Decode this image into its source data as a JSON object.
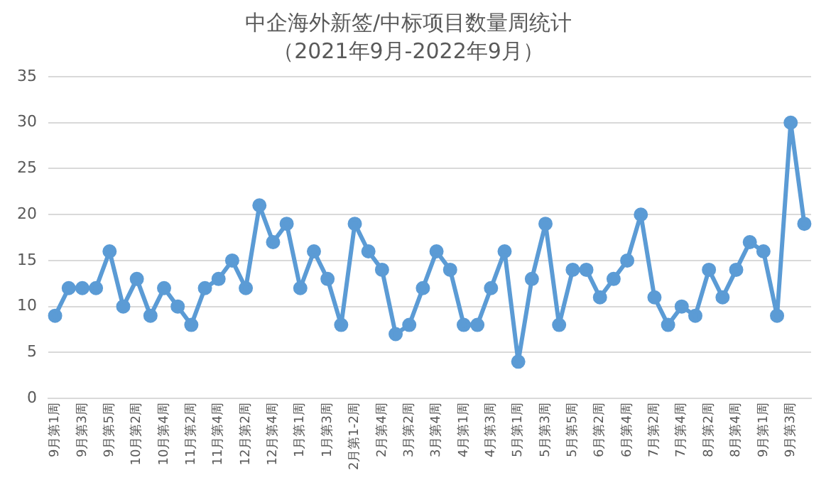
{
  "chart_data": {
    "type": "line",
    "title": "中企海外新签/中标项目数量周统计",
    "subtitle": "（2021年9月-2022年9月）",
    "categories": [
      "9月第1周",
      null,
      "9月第3周",
      null,
      "9月第5周",
      null,
      "10月第2周",
      null,
      "10月第4周",
      null,
      "11月第2周",
      null,
      "11月第4周",
      null,
      "12月第2周",
      null,
      "12月第4周",
      null,
      "1月第1周",
      null,
      "1月第3周",
      null,
      "2月第1-2周",
      null,
      "2月第4周",
      null,
      "3月第2周",
      null,
      "3月第4周",
      null,
      "4月第1周",
      null,
      "4月第3周",
      null,
      "5月第1周",
      null,
      "5月第3周",
      null,
      "5月第5周",
      null,
      "6月第2周",
      null,
      "6月第4周",
      null,
      "7月第2周",
      null,
      "7月第4周",
      null,
      "8月第2周",
      null,
      "8月第4周",
      null,
      "9月第1周",
      null,
      "9月第3周",
      null
    ],
    "values": [
      9,
      12,
      12,
      12,
      16,
      10,
      13,
      9,
      12,
      10,
      8,
      12,
      13,
      15,
      12,
      21,
      17,
      19,
      12,
      16,
      13,
      8,
      19,
      16,
      14,
      7,
      8,
      12,
      16,
      14,
      8,
      8,
      12,
      16,
      4,
      13,
      19,
      8,
      14,
      14,
      11,
      13,
      15,
      20,
      11,
      8,
      10,
      9,
      14,
      11,
      14,
      17,
      16,
      9,
      30,
      19
    ],
    "color": "#5b9bd5",
    "marker": "circle",
    "line_style": "solid",
    "ylim": [
      0,
      35
    ],
    "yticks": [
      0,
      5,
      10,
      15,
      20,
      25,
      30,
      35
    ],
    "grid": "y",
    "legend": false
  }
}
